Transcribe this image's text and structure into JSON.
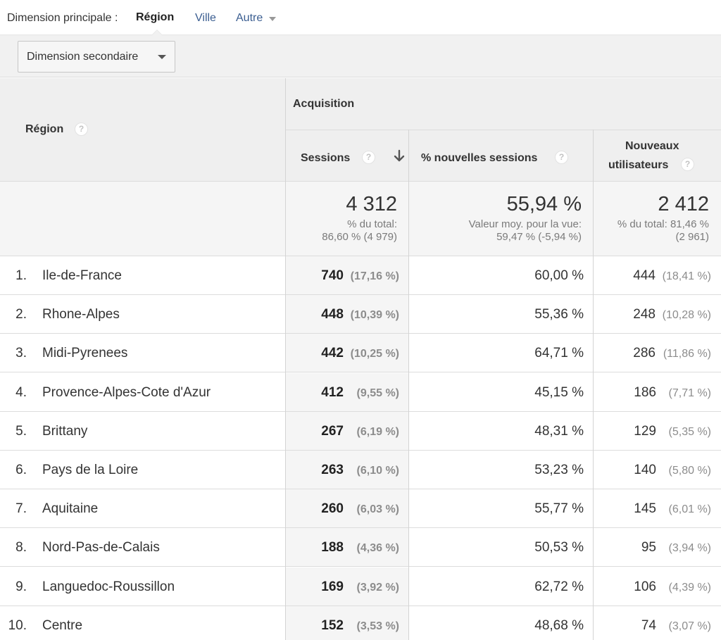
{
  "dimension_bar": {
    "label": "Dimension principale :",
    "active": "Région",
    "options": [
      "Ville",
      "Autre"
    ]
  },
  "secondary_dimension": {
    "label": "Dimension secondaire"
  },
  "table": {
    "col_region": "Région",
    "group_header": "Acquisition",
    "col_sessions": "Sessions",
    "col_new_sessions": "% nouvelles sessions",
    "col_new_users_line1": "Nouveaux",
    "col_new_users_line2": "utilisateurs",
    "help_glyph": "?",
    "totals": {
      "sessions": "4 312",
      "sessions_sub1": "% du total:",
      "sessions_sub2": "86,60 % (4 979)",
      "new_sessions": "55,94 %",
      "new_sessions_sub1": "Valeur moy. pour la vue:",
      "new_sessions_sub2": "59,47 % (-5,94 %)",
      "new_users": "2 412",
      "new_users_sub1": "% du total: 81,46 %",
      "new_users_sub2": "(2 961)"
    },
    "rows": [
      {
        "num": "1.",
        "region": "Ile-de-France",
        "sessions": "740",
        "sessions_pct": "(17,16 %)",
        "new_sessions": "60,00 %",
        "new_users": "444",
        "new_users_pct": "(18,41 %)"
      },
      {
        "num": "2.",
        "region": "Rhone-Alpes",
        "sessions": "448",
        "sessions_pct": "(10,39 %)",
        "new_sessions": "55,36 %",
        "new_users": "248",
        "new_users_pct": "(10,28 %)"
      },
      {
        "num": "3.",
        "region": "Midi-Pyrenees",
        "sessions": "442",
        "sessions_pct": "(10,25 %)",
        "new_sessions": "64,71 %",
        "new_users": "286",
        "new_users_pct": "(11,86 %)"
      },
      {
        "num": "4.",
        "region": "Provence-Alpes-Cote d'Azur",
        "sessions": "412",
        "sessions_pct": "(9,55 %)",
        "new_sessions": "45,15 %",
        "new_users": "186",
        "new_users_pct": "(7,71 %)"
      },
      {
        "num": "5.",
        "region": "Brittany",
        "sessions": "267",
        "sessions_pct": "(6,19 %)",
        "new_sessions": "48,31 %",
        "new_users": "129",
        "new_users_pct": "(5,35 %)"
      },
      {
        "num": "6.",
        "region": "Pays de la Loire",
        "sessions": "263",
        "sessions_pct": "(6,10 %)",
        "new_sessions": "53,23 %",
        "new_users": "140",
        "new_users_pct": "(5,80 %)"
      },
      {
        "num": "7.",
        "region": "Aquitaine",
        "sessions": "260",
        "sessions_pct": "(6,03 %)",
        "new_sessions": "55,77 %",
        "new_users": "145",
        "new_users_pct": "(6,01 %)"
      },
      {
        "num": "8.",
        "region": "Nord-Pas-de-Calais",
        "sessions": "188",
        "sessions_pct": "(4,36 %)",
        "new_sessions": "50,53 %",
        "new_users": "95",
        "new_users_pct": "(3,94 %)"
      },
      {
        "num": "9.",
        "region": "Languedoc-Roussillon",
        "sessions": "169",
        "sessions_pct": "(3,92 %)",
        "new_sessions": "62,72 %",
        "new_users": "106",
        "new_users_pct": "(4,39 %)"
      },
      {
        "num": "10.",
        "region": "Centre",
        "sessions": "152",
        "sessions_pct": "(3,53 %)",
        "new_sessions": "48,68 %",
        "new_users": "74",
        "new_users_pct": "(3,07 %)"
      }
    ]
  },
  "colors": {
    "link": "#3b5e91",
    "header_bg": "#efefef",
    "muted": "#8c8c8c"
  }
}
